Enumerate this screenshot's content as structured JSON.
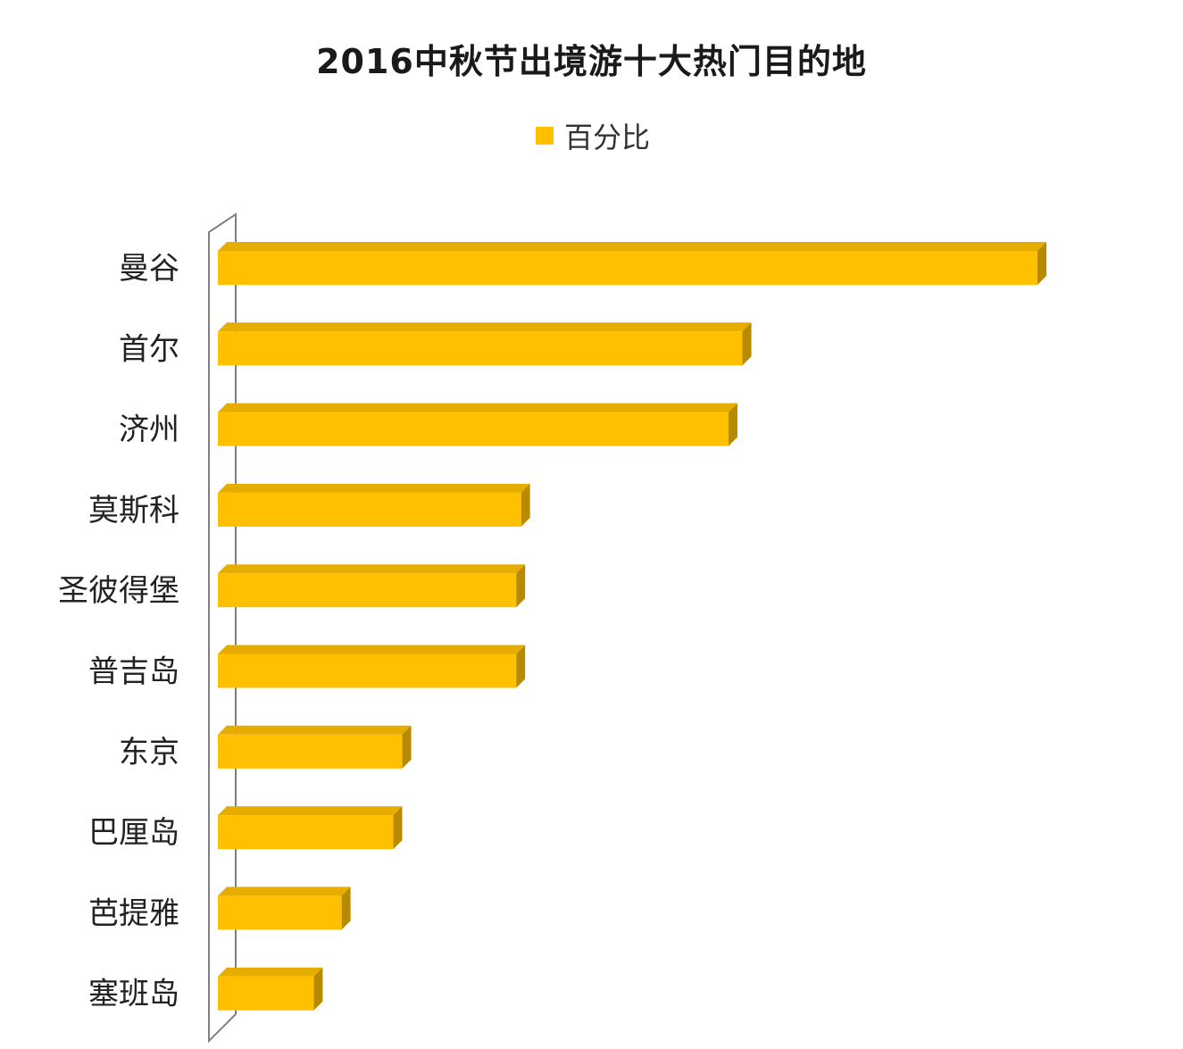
{
  "chart_data": {
    "type": "bar",
    "orientation": "horizontal",
    "title": "2016中秋节出境游十大热门目的地",
    "legend": {
      "position": "top",
      "entries": [
        "百分比"
      ]
    },
    "categories": [
      "曼谷",
      "首尔",
      "济州",
      "莫斯科",
      "圣彼得堡",
      "普吉岛",
      "东京",
      "巴厘岛",
      "芭提雅",
      "塞班岛"
    ],
    "series": [
      {
        "name": "百分比",
        "values": [
          100,
          64,
          62.3,
          37,
          36.4,
          36.4,
          22.5,
          21.4,
          15.1,
          11.7
        ],
        "color": "#FFC000"
      }
    ],
    "xlim": [
      0,
      100
    ],
    "grid": false,
    "colors": {
      "bar_front": "#FFC000",
      "bar_top": "#E6AD00",
      "bar_side": "#B88A00",
      "axis_wall": "#7f7f7f"
    }
  }
}
